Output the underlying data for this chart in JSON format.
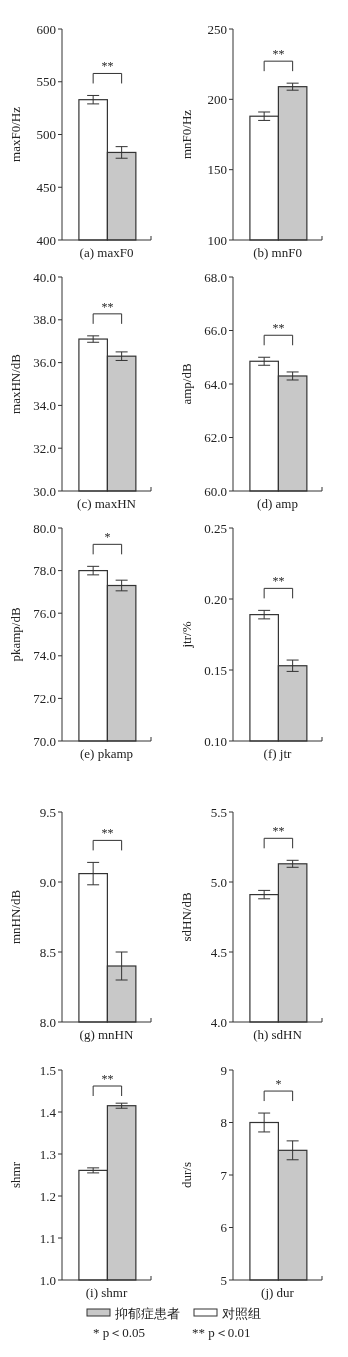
{
  "chart_data": [
    {
      "type": "bar",
      "categories": [
        null
      ],
      "xlabel": "(a) maxF0",
      "ylabel": "maxF0/Hz",
      "ylim": [
        400,
        600
      ],
      "yticks": [
        400,
        450,
        500,
        550,
        600
      ],
      "annotations": [
        "**"
      ],
      "legend": "bottom",
      "series": [
        {
          "name": "对照组",
          "color": "#ffffff",
          "values": [
            533
          ],
          "errors": [
            4
          ]
        },
        {
          "name": "抑郁症患者",
          "color": "#c8c8c8",
          "values": [
            483
          ],
          "errors": [
            5.5
          ]
        }
      ]
    },
    {
      "type": "bar",
      "categories": [
        null
      ],
      "xlabel": "(b) mnF0",
      "ylabel": "mnF0/Hz",
      "ylim": [
        100,
        250
      ],
      "yticks": [
        100,
        150,
        200,
        250
      ],
      "annotations": [
        "**"
      ],
      "series": [
        {
          "color": "#ffffff",
          "values": [
            188
          ],
          "errors": [
            3
          ]
        },
        {
          "color": "#c8c8c8",
          "values": [
            209
          ],
          "errors": [
            2.5
          ]
        }
      ]
    },
    {
      "type": "bar",
      "categories": [
        null
      ],
      "xlabel": "(c) maxHN",
      "ylabel": "maxHN/dB",
      "ylim": [
        30,
        40
      ],
      "yticks": [
        {
          "value": 30,
          "label": "30.0"
        },
        {
          "value": 32,
          "label": "32.0"
        },
        {
          "value": 34,
          "label": "34.0"
        },
        {
          "value": 36,
          "label": "36.0"
        },
        {
          "value": 38,
          "label": "38.0"
        },
        {
          "value": 40,
          "label": "40.0"
        }
      ],
      "annotations": [
        "**"
      ],
      "series": [
        {
          "color": "#ffffff",
          "values": [
            37.1
          ],
          "errors": [
            0.15
          ]
        },
        {
          "color": "#c8c8c8",
          "values": [
            36.3
          ],
          "errors": [
            0.2
          ]
        }
      ]
    },
    {
      "type": "bar",
      "categories": [
        null
      ],
      "xlabel": "(d) amp",
      "ylabel": "amp/dB",
      "ylim": [
        60,
        68
      ],
      "yticks": [
        {
          "value": 60,
          "label": "60.0"
        },
        {
          "value": 62,
          "label": "62.0"
        },
        {
          "value": 64,
          "label": "64.0"
        },
        {
          "value": 66,
          "label": "66.0"
        },
        {
          "value": 68,
          "label": "68.0"
        }
      ],
      "annotations": [
        "**"
      ],
      "series": [
        {
          "color": "#ffffff",
          "values": [
            64.85
          ],
          "errors": [
            0.15
          ]
        },
        {
          "color": "#c8c8c8",
          "values": [
            64.3
          ],
          "errors": [
            0.15
          ]
        }
      ]
    },
    {
      "type": "bar",
      "categories": [
        null
      ],
      "xlabel": "(e) pkamp",
      "ylabel": "pkamp/dB",
      "ylim": [
        70,
        80
      ],
      "yticks": [
        {
          "value": 70,
          "label": "70.0"
        },
        {
          "value": 72,
          "label": "72.0"
        },
        {
          "value": 74,
          "label": "74.0"
        },
        {
          "value": 76,
          "label": "76.0"
        },
        {
          "value": 78,
          "label": "78.0"
        },
        {
          "value": 80,
          "label": "80.0"
        }
      ],
      "annotations": [
        "*"
      ],
      "series": [
        {
          "color": "#ffffff",
          "values": [
            78.0
          ],
          "errors": [
            0.2
          ]
        },
        {
          "color": "#c8c8c8",
          "values": [
            77.3
          ],
          "errors": [
            0.25
          ]
        }
      ]
    },
    {
      "type": "bar",
      "categories": [
        null
      ],
      "xlabel": "(f) jtr",
      "ylabel": "jtr/%",
      "ylim": [
        0.1,
        0.25
      ],
      "yticks": [
        {
          "value": 0.1,
          "label": "0.10"
        },
        {
          "value": 0.15,
          "label": "0.15"
        },
        {
          "value": 0.2,
          "label": "0.20"
        },
        {
          "value": 0.25,
          "label": "0.25"
        }
      ],
      "annotations": [
        "**"
      ],
      "series": [
        {
          "color": "#ffffff",
          "values": [
            0.189
          ],
          "errors": [
            0.003
          ]
        },
        {
          "color": "#c8c8c8",
          "values": [
            0.153
          ],
          "errors": [
            0.004
          ]
        }
      ]
    },
    {
      "type": "bar",
      "categories": [
        null
      ],
      "xlabel": "(g) mnHN",
      "ylabel": "mnHN/dB",
      "ylim": [
        8,
        9.5
      ],
      "yticks": [
        {
          "value": 8,
          "label": "8.0"
        },
        {
          "value": 8.5,
          "label": "8.5"
        },
        {
          "value": 9,
          "label": "9.0"
        },
        {
          "value": 9.5,
          "label": "9.5"
        }
      ],
      "annotations": [
        "**"
      ],
      "series": [
        {
          "color": "#ffffff",
          "values": [
            9.06
          ],
          "errors": [
            0.08
          ]
        },
        {
          "color": "#c8c8c8",
          "values": [
            8.4
          ],
          "errors": [
            0.1
          ]
        }
      ]
    },
    {
      "type": "bar",
      "categories": [
        null
      ],
      "xlabel": "(h) sdHN",
      "ylabel": "sdHN/dB",
      "ylim": [
        4,
        5.5
      ],
      "yticks": [
        {
          "value": 4,
          "label": "4.0"
        },
        {
          "value": 4.5,
          "label": "4.5"
        },
        {
          "value": 5,
          "label": "5.0"
        },
        {
          "value": 5.5,
          "label": "5.5"
        }
      ],
      "annotations": [
        "**"
      ],
      "series": [
        {
          "color": "#ffffff",
          "values": [
            4.91
          ],
          "errors": [
            0.03
          ]
        },
        {
          "color": "#c8c8c8",
          "values": [
            5.13
          ],
          "errors": [
            0.025
          ]
        }
      ]
    },
    {
      "type": "bar",
      "categories": [
        null
      ],
      "xlabel": "(i) shmr",
      "ylabel": "shmr",
      "ylim": [
        1,
        1.5
      ],
      "yticks": [
        {
          "value": 1,
          "label": "1.0"
        },
        1.1,
        1.2,
        1.3,
        1.4,
        1.5
      ],
      "annotations": [
        "**"
      ],
      "series": [
        {
          "color": "#ffffff",
          "values": [
            1.261
          ],
          "errors": [
            0.006
          ]
        },
        {
          "color": "#c8c8c8",
          "values": [
            1.415
          ],
          "errors": [
            0.006
          ]
        }
      ]
    },
    {
      "type": "bar",
      "categories": [
        null
      ],
      "xlabel": "(j) dur",
      "ylabel": "dur/s",
      "ylim": [
        5,
        9
      ],
      "yticks": [
        5,
        6,
        7,
        8,
        9
      ],
      "annotations": [
        "*",
        "* p＜0.05",
        "** p＜0.01"
      ],
      "series": [
        {
          "color": "#ffffff",
          "values": [
            8.0
          ],
          "errors": [
            0.18
          ]
        },
        {
          "color": "#c8c8c8",
          "values": [
            7.47
          ],
          "errors": [
            0.18
          ]
        }
      ]
    }
  ]
}
